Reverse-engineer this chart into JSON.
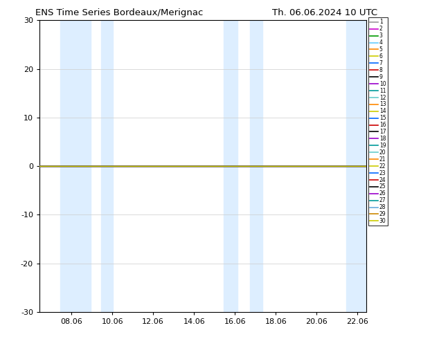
{
  "title_left": "ENS Time Series Bordeaux/Merignac",
  "title_right": "Th. 06.06.2024 10 UTC",
  "ylim": [
    -30,
    30
  ],
  "yticks": [
    -30,
    -20,
    -10,
    0,
    10,
    20,
    30
  ],
  "xlim": [
    6.5,
    22.5
  ],
  "xticks": [
    8.06,
    10.06,
    12.06,
    14.06,
    16.06,
    18.06,
    20.06,
    22.06
  ],
  "xticklabels": [
    "08.06",
    "10.06",
    "12.06",
    "14.06",
    "16.06",
    "18.06",
    "20.06",
    "22.06"
  ],
  "shaded_bands": [
    [
      7.5,
      9.0
    ],
    [
      9.5,
      10.1
    ],
    [
      15.5,
      16.2
    ],
    [
      16.8,
      17.4
    ],
    [
      21.5,
      22.5
    ]
  ],
  "zero_line_color": "#cccc00",
  "background_color": "#ffffff",
  "member_colors": [
    "#999999",
    "#cc00cc",
    "#009900",
    "#66ccff",
    "#ff8800",
    "#cccc00",
    "#0066ff",
    "#cc0000",
    "#000000",
    "#9900cc",
    "#009999",
    "#66cccc",
    "#ff8800",
    "#cccc00",
    "#0066ff",
    "#cc0000",
    "#000000",
    "#9900cc",
    "#009999",
    "#66cccc",
    "#ff8800",
    "#cccc00",
    "#0066ff",
    "#cc0000",
    "#000000",
    "#9900cc",
    "#009999",
    "#66aadd",
    "#cc8800",
    "#cccc00"
  ],
  "n_members": 30,
  "shaded_color": "#ddeeff",
  "shaded_alpha": 1.0,
  "grid_color": "#cccccc",
  "grid_linewidth": 0.5,
  "zero_linewidth": 1.2,
  "legend_fontsize": 5.5,
  "legend_handlelength": 1.5,
  "legend_labelspacing": 0.12,
  "tick_fontsize": 8
}
